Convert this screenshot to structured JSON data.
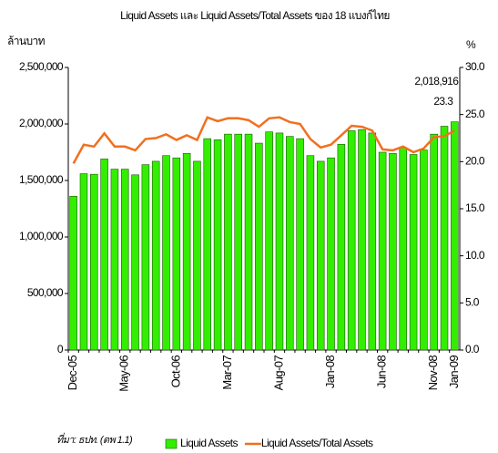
{
  "chart_data": {
    "type": "bar-line",
    "title": "Liquid Assets และ Liquid Assets/Total Assets ของ 18 แบงก์ไทย",
    "y_label": "ล้านบาท",
    "y2_label": "%",
    "source": "ที่มา: ธปท. (ตพ 1.1)",
    "categories": [
      "Dec-05",
      null,
      null,
      null,
      null,
      "May-06",
      null,
      null,
      null,
      null,
      "Oct-06",
      null,
      null,
      null,
      null,
      "Mar-07",
      null,
      null,
      null,
      null,
      "Aug-07",
      null,
      null,
      null,
      null,
      "Jan-08",
      null,
      null,
      null,
      null,
      "Jun-08",
      null,
      null,
      null,
      null,
      "Nov-08",
      null,
      "Jan-09"
    ],
    "series": [
      {
        "name": "Liquid Assets",
        "type": "bar",
        "color": "#33ee00",
        "values": [
          1360000,
          1560000,
          1555000,
          1690000,
          1600000,
          1600000,
          1550000,
          1640000,
          1670000,
          1720000,
          1700000,
          1740000,
          1670000,
          1870000,
          1860000,
          1910000,
          1910000,
          1910000,
          1830000,
          1930000,
          1920000,
          1890000,
          1870000,
          1720000,
          1670000,
          1700000,
          1820000,
          1940000,
          1950000,
          1920000,
          1750000,
          1740000,
          1790000,
          1730000,
          1770000,
          1910000,
          1980000,
          2018916
        ],
        "value_labels": [
          null,
          null,
          null,
          null,
          null,
          null,
          null,
          null,
          null,
          null,
          null,
          null,
          null,
          null,
          null,
          null,
          null,
          null,
          null,
          null,
          null,
          null,
          null,
          null,
          null,
          null,
          null,
          null,
          null,
          null,
          null,
          null,
          null,
          null,
          null,
          null,
          null,
          "2,018,916"
        ]
      },
      {
        "name": "Liquid Assets/Total Assets",
        "type": "line",
        "axis": "y2",
        "color": "#f07020",
        "values": [
          19.8,
          21.8,
          21.6,
          23.0,
          21.6,
          21.6,
          21.2,
          22.4,
          22.5,
          22.9,
          22.3,
          22.8,
          22.3,
          24.7,
          24.3,
          24.6,
          24.6,
          24.4,
          23.7,
          24.6,
          24.7,
          24.2,
          24.0,
          22.4,
          21.5,
          21.8,
          22.8,
          23.8,
          23.7,
          23.3,
          21.3,
          21.2,
          21.6,
          21.0,
          21.4,
          22.6,
          22.7,
          23.3
        ]
      }
    ],
    "ylim": [
      0,
      2500000
    ],
    "yticks": [
      0,
      {
        "value": 500000,
        "label": "500,000"
      },
      {
        "value": 1000000,
        "label": "1,000,000"
      },
      {
        "value": 1500000,
        "label": "1,500,000"
      },
      {
        "value": 2000000,
        "label": "2,000,000"
      },
      {
        "value": 2500000,
        "label": "2,500,000"
      }
    ],
    "y2lim": [
      0,
      30
    ],
    "y2ticks": [
      {
        "value": 0,
        "label": "0.0"
      },
      {
        "value": 5,
        "label": "5.0"
      },
      {
        "value": 10,
        "label": "10.0"
      },
      {
        "value": 15,
        "label": "15.0"
      },
      {
        "value": 20,
        "label": "20.0"
      },
      {
        "value": 25,
        "label": "25.0"
      },
      {
        "value": 30,
        "label": "30.0"
      }
    ],
    "grid": false,
    "legend": "bottom"
  }
}
